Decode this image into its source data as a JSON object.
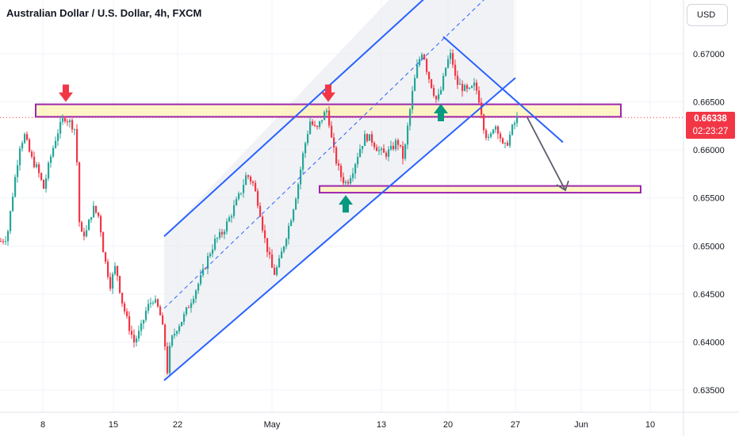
{
  "header": {
    "title": "Australian Dollar / U.S. Dollar, 4h, FXCM",
    "currency_button": "USD"
  },
  "price_badge": {
    "price": "0.66338",
    "countdown": "02:23:27"
  },
  "colors": {
    "up": "#26a69a",
    "down": "#f23645",
    "channel": "#2962ff",
    "zone_border": "#9c27b0",
    "zone_fill": "#fff2b3",
    "arrow_down": "#f23645",
    "arrow_up": "#089981",
    "projection": "#5d606b"
  },
  "chart_data": {
    "type": "candlestick",
    "title": "Australian Dollar / U.S. Dollar, 4h, FXCM",
    "y_axis": {
      "range": [
        0.6335,
        0.6775
      ],
      "ticks": [
        "0.63500",
        "0.64000",
        "0.64500",
        "0.65000",
        "0.65500",
        "0.66000",
        "0.66500",
        "0.67000"
      ]
    },
    "x_axis": {
      "ticks": [
        "8",
        "15",
        "22",
        "May",
        "13",
        "20",
        "27",
        "Jun",
        "10"
      ]
    },
    "current_price": 0.66338,
    "price_path": [
      [
        0,
        0.6505
      ],
      [
        8,
        0.651
      ],
      [
        16,
        0.656
      ],
      [
        24,
        0.6605
      ],
      [
        30,
        0.6615
      ],
      [
        38,
        0.6592
      ],
      [
        46,
        0.658
      ],
      [
        54,
        0.656
      ],
      [
        62,
        0.659
      ],
      [
        70,
        0.6615
      ],
      [
        80,
        0.6635
      ],
      [
        88,
        0.6628
      ],
      [
        95,
        0.662
      ],
      [
        97,
        0.6555
      ],
      [
        100,
        0.651
      ],
      [
        108,
        0.6515
      ],
      [
        116,
        0.654
      ],
      [
        124,
        0.653
      ],
      [
        130,
        0.649
      ],
      [
        138,
        0.646
      ],
      [
        145,
        0.648
      ],
      [
        152,
        0.6445
      ],
      [
        160,
        0.642
      ],
      [
        168,
        0.64
      ],
      [
        176,
        0.6412
      ],
      [
        184,
        0.6435
      ],
      [
        192,
        0.6445
      ],
      [
        200,
        0.6432
      ],
      [
        206,
        0.6405
      ],
      [
        210,
        0.637
      ],
      [
        214,
        0.64
      ],
      [
        222,
        0.6415
      ],
      [
        230,
        0.6425
      ],
      [
        238,
        0.644
      ],
      [
        246,
        0.6455
      ],
      [
        254,
        0.647
      ],
      [
        262,
        0.649
      ],
      [
        270,
        0.6505
      ],
      [
        278,
        0.6512
      ],
      [
        286,
        0.6525
      ],
      [
        294,
        0.654
      ],
      [
        302,
        0.6555
      ],
      [
        310,
        0.6575
      ],
      [
        318,
        0.6565
      ],
      [
        326,
        0.654
      ],
      [
        332,
        0.651
      ],
      [
        338,
        0.649
      ],
      [
        344,
        0.647
      ],
      [
        350,
        0.648
      ],
      [
        358,
        0.6505
      ],
      [
        366,
        0.653
      ],
      [
        374,
        0.656
      ],
      [
        382,
        0.66
      ],
      [
        390,
        0.663
      ],
      [
        398,
        0.662
      ],
      [
        406,
        0.6635
      ],
      [
        412,
        0.6642
      ],
      [
        418,
        0.6605
      ],
      [
        424,
        0.6585
      ],
      [
        430,
        0.657
      ],
      [
        436,
        0.6565
      ],
      [
        444,
        0.658
      ],
      [
        452,
        0.66
      ],
      [
        460,
        0.6615
      ],
      [
        468,
        0.661
      ],
      [
        476,
        0.66
      ],
      [
        484,
        0.6595
      ],
      [
        492,
        0.66
      ],
      [
        500,
        0.661
      ],
      [
        508,
        0.659
      ],
      [
        514,
        0.663
      ],
      [
        520,
        0.6665
      ],
      [
        526,
        0.669
      ],
      [
        532,
        0.6705
      ],
      [
        538,
        0.668
      ],
      [
        544,
        0.6665
      ],
      [
        550,
        0.665
      ],
      [
        556,
        0.6665
      ],
      [
        562,
        0.669
      ],
      [
        568,
        0.67
      ],
      [
        574,
        0.667
      ],
      [
        582,
        0.6665
      ],
      [
        590,
        0.666
      ],
      [
        598,
        0.6668
      ],
      [
        604,
        0.665
      ],
      [
        610,
        0.662
      ],
      [
        616,
        0.6608
      ],
      [
        622,
        0.6628
      ],
      [
        628,
        0.662
      ],
      [
        634,
        0.66
      ],
      [
        640,
        0.661
      ],
      [
        646,
        0.6625
      ],
      [
        652,
        0.66338
      ]
    ],
    "channel": {
      "upper": [
        [
          "2024-04-22",
          0.651
        ],
        [
          "2024-05-20",
          0.678
        ]
      ],
      "lower": [
        [
          "2024-04-22",
          0.636
        ],
        [
          "2024-05-27",
          0.6675
        ]
      ],
      "mid": [
        [
          "2024-04-22",
          0.6435
        ],
        [
          "2024-05-27",
          0.678
        ]
      ],
      "shaded": true
    },
    "resistance_zone": {
      "top": 0.66475,
      "bottom": 0.66345
    },
    "support_zone": {
      "top": 0.65625,
      "bottom": 0.65555
    },
    "trendline": [
      [
        "2024-05-20",
        0.6718
      ],
      [
        "2024-06-01",
        0.6608
      ]
    ],
    "projection": [
      [
        0.66338
      ],
      [
        0.6558
      ]
    ],
    "annotations": [
      {
        "type": "arrow-down",
        "color": "red",
        "label": ""
      },
      {
        "type": "arrow-down",
        "color": "red",
        "label": ""
      },
      {
        "type": "arrow-up",
        "color": "green",
        "label": ""
      },
      {
        "type": "arrow-up",
        "color": "green",
        "label": ""
      }
    ],
    "grid": true,
    "legend": "none"
  }
}
